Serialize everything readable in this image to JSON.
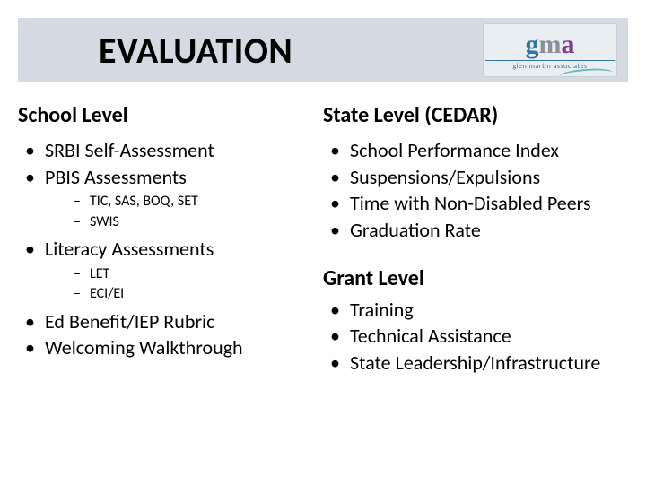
{
  "title": "EVALUATION",
  "logo": {
    "g": "g",
    "m": "m",
    "a": "a",
    "subtitle": "glen martin associates"
  },
  "left": {
    "heading": "School Level",
    "items": [
      {
        "label": "SRBI Self-Assessment"
      },
      {
        "label": "PBIS Assessments",
        "sub": [
          "TIC, SAS, BOQ, SET",
          "SWIS"
        ]
      },
      {
        "label": "Literacy Assessments",
        "sub": [
          "LET",
          "ECI/EI"
        ]
      },
      {
        "label": "Ed Benefit/IEP Rubric"
      },
      {
        "label": "Welcoming Walkthrough"
      }
    ]
  },
  "right": {
    "heading": "State Level (CEDAR)",
    "items": [
      "School Performance Index",
      "Suspensions/Expulsions",
      "Time with Non-Disabled Peers",
      "Graduation Rate"
    ],
    "grant_heading": "Grant Level",
    "grant_items": [
      "Training",
      "Technical Assistance",
      "State Leadership/Infrastructure"
    ]
  }
}
